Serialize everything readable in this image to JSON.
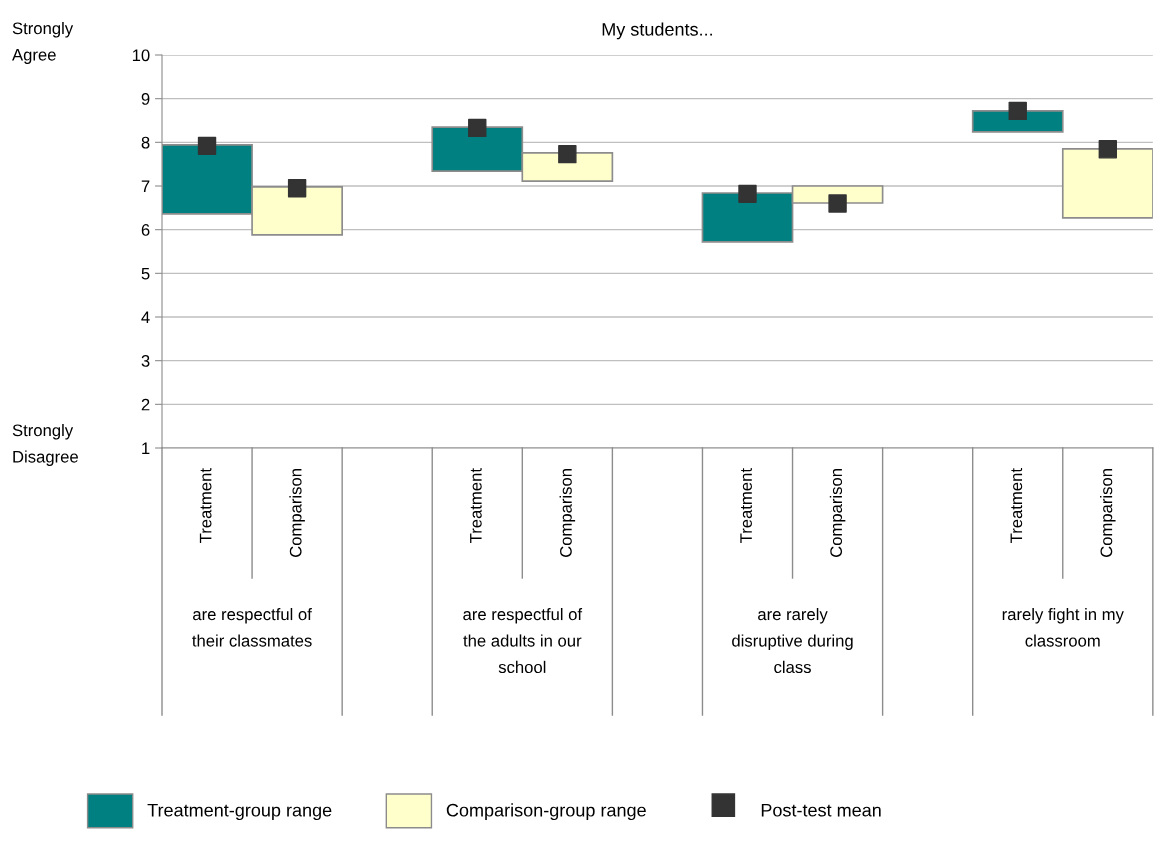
{
  "chart_data": {
    "type": "bar",
    "title": "My students...",
    "categories": [
      "Treatment",
      "Comparison",
      null,
      "Treatment",
      "Comparison",
      null,
      "Treatment",
      "Comparison",
      null,
      "Treatment",
      "Comparison"
    ],
    "series": [
      {
        "name": "Treatment-group range",
        "color": "#008080",
        "base": [
          6.36,
          null,
          null,
          7.34,
          null,
          null,
          5.72,
          null,
          null,
          8.24,
          null
        ],
        "values": [
          1.58,
          null,
          null,
          1.01,
          null,
          null,
          1.12,
          null,
          null,
          0.48,
          null
        ]
      },
      {
        "name": "Comparison-group range",
        "color": "#ffffcc",
        "base": [
          null,
          5.88,
          null,
          null,
          7.11,
          null,
          null,
          6.61,
          null,
          null,
          6.27
        ],
        "values": [
          null,
          1.1,
          null,
          null,
          0.65,
          null,
          null,
          0.39,
          null,
          null,
          1.58
        ]
      },
      {
        "name": "Post-test mean",
        "type": "scatter",
        "marker": "square",
        "color": "#333333",
        "values": [
          7.92,
          6.95,
          null,
          8.33,
          7.73,
          null,
          6.82,
          6.6,
          null,
          8.72,
          7.84
        ]
      }
    ],
    "ylim": [
      1,
      10
    ],
    "yticks": [
      1,
      2,
      3,
      4,
      5,
      6,
      7,
      8,
      9,
      10
    ],
    "grid": "y",
    "legend": "bottom",
    "annotations": [
      "Strongly Agree",
      "Strongly Disagree",
      "are respectful of their classmates",
      "are respectful of the adults in our school",
      "are rarely disruptive during class",
      "rarely fight in my classroom"
    ]
  }
}
